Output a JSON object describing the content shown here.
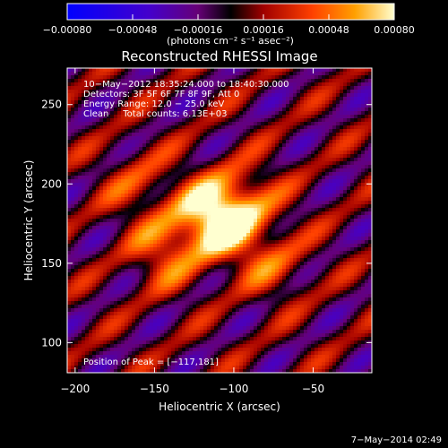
{
  "chart_data": {
    "type": "heatmap",
    "title": "Reconstructed RHESSI Image",
    "xlabel": "Heliocentric X (arcsec)",
    "ylabel": "Heliocentric Y (arcsec)",
    "xlim": [
      -205,
      -13
    ],
    "ylim": [
      81,
      273
    ],
    "x_ticks": [
      -200,
      -150,
      -100,
      -50
    ],
    "y_ticks": [
      100,
      150,
      200,
      250
    ],
    "x_tick_labels": [
      "−200",
      "−150",
      "−100",
      "−50"
    ],
    "y_tick_labels": [
      "100",
      "150",
      "200",
      "250"
    ],
    "colorbar": {
      "range": [
        -0.0008,
        0.0008
      ],
      "ticks": [
        -0.0008,
        -0.00048,
        -0.00016,
        0.00016,
        0.00048,
        0.0008
      ],
      "tick_labels": [
        "−0.00080",
        "−0.00048",
        "−0.00016",
        "0.00016",
        "0.00048",
        "0.00080"
      ],
      "unit_label": "(photons cm⁻² s⁻¹ asec⁻²)"
    },
    "info_lines": [
      "10−May−2012 18:35:24.000 to 18:40:30.000",
      "Detectors: 3F 5F 6F 7F 8F 9F, Att 0",
      "Energy Range: 12.0 − 25.0 keV",
      "Clean     Total counts: 6.13E+03"
    ],
    "peak_label": "Position of Peak = [−117,181]",
    "peak_position": [
      -117,
      181
    ],
    "stripe_angle_deg": 38,
    "sources": [
      {
        "x": -117,
        "y": 181,
        "amplitude": 1.0
      },
      {
        "x": -105,
        "y": 172,
        "amplitude": 0.8
      },
      {
        "x": -143,
        "y": 157,
        "amplitude": 0.75
      },
      {
        "x": -93,
        "y": 190,
        "amplitude": 0.7
      },
      {
        "x": -75,
        "y": 150,
        "amplitude": 0.55
      },
      {
        "x": -160,
        "y": 200,
        "amplitude": 0.5
      }
    ]
  },
  "footer": {
    "timestamp": "7−May−2014 02:49"
  }
}
